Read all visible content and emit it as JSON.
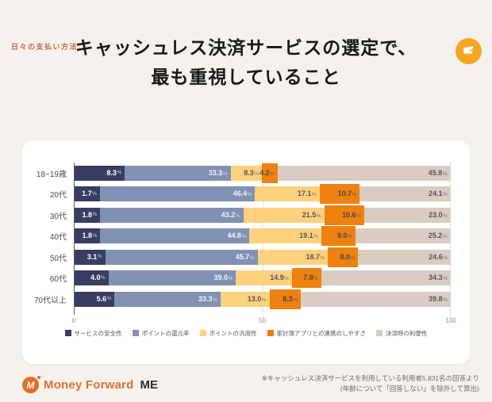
{
  "page": {
    "eyebrow": "日々の支払い方法",
    "title_line1": "キャッシュレス決済サービスの選定で、",
    "title_line2": "最も重視していること"
  },
  "colors": {
    "background": "#f5f2ee",
    "card": "#ffffff",
    "accent_orange": "#d4603c",
    "badge_orange": "#f5a623",
    "logo_orange": "#e86d28"
  },
  "chart_data": {
    "type": "bar",
    "orientation": "horizontal",
    "stacked": true,
    "categories": [
      "18~19歳",
      "20代",
      "30代",
      "40代",
      "50代",
      "60代",
      "70代以上"
    ],
    "series": [
      {
        "name": "サービスの安全性",
        "color": "#373e62",
        "text_color": "#ffffff",
        "values": [
          8.3,
          1.7,
          1.8,
          1.8,
          3.1,
          4.0,
          5.6
        ]
      },
      {
        "name": "ポイントの還元率",
        "color": "#8191b3",
        "text_color": "#f4f4f7",
        "values": [
          33.3,
          46.4,
          43.2,
          44.8,
          45.7,
          39.0,
          33.3
        ]
      },
      {
        "name": "ポイントの汎用性",
        "color": "#fdd17e",
        "text_color": "#59535e",
        "values": [
          8.3,
          17.1,
          21.5,
          19.1,
          18.7,
          14.9,
          13.0
        ]
      },
      {
        "name": "家計簿アプリとの連携のしやすさ",
        "color": "#ef810e",
        "text_color": "#4c4154",
        "values": [
          4.2,
          10.7,
          10.6,
          9.0,
          8.0,
          7.8,
          8.3
        ]
      },
      {
        "name": "決済時の利便性",
        "color": "#d9cdc1",
        "text_color": "#59535e",
        "values": [
          45.8,
          24.1,
          23.0,
          25.2,
          24.6,
          34.3,
          39.8
        ]
      }
    ],
    "xlim": [
      0,
      100
    ],
    "x_ticks": [
      0,
      50,
      100
    ],
    "grid": "dotted-vertical",
    "legend_position": "bottom",
    "value_suffix": "%"
  },
  "footer": {
    "logo_name": "Money Forward",
    "logo_suffix": "ME",
    "note_line1": "※キャッシュレス決済サービスを利用している利用者5,831名の回答より",
    "note_line2": "(年齢について「回答しない」を除外して算出)"
  }
}
